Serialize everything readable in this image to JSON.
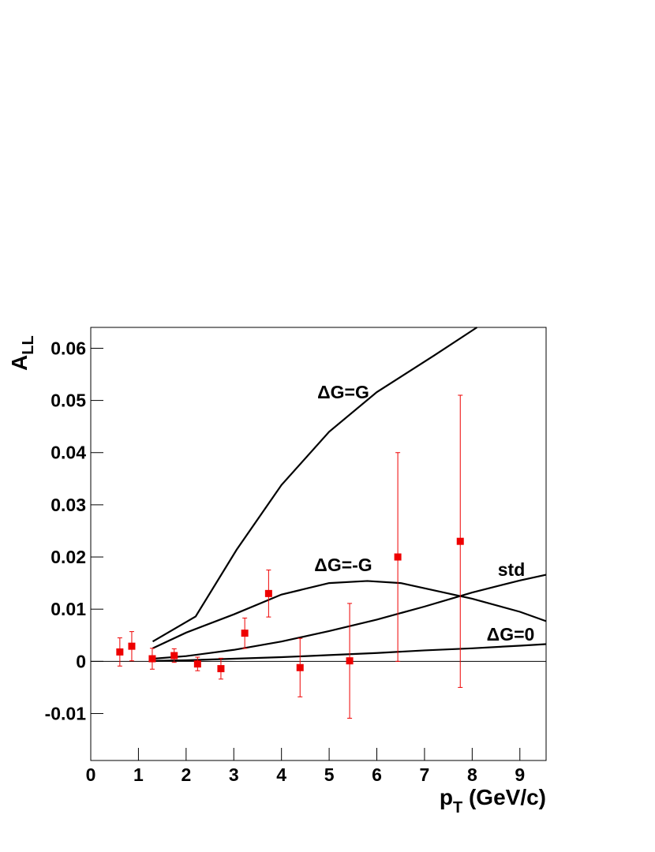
{
  "chart_data": {
    "type": "scatter",
    "x_label": {
      "main": "p",
      "sub": "T",
      "rest": " (GeV/c)"
    },
    "y_label": {
      "main": "A",
      "sub": "LL"
    },
    "xlim": [
      0,
      9.55
    ],
    "ylim": [
      -0.019,
      0.064
    ],
    "xticks": [
      0,
      1,
      2,
      3,
      4,
      5,
      6,
      7,
      8,
      9
    ],
    "yticks": [
      -0.01,
      0,
      0.01,
      0.02,
      0.03,
      0.04,
      0.05,
      0.06
    ],
    "points": {
      "color": "#ee0000",
      "x": [
        0.61,
        0.86,
        1.29,
        1.75,
        2.24,
        2.73,
        3.23,
        3.73,
        4.39,
        5.43,
        6.44,
        7.75
      ],
      "values": [
        0.0018,
        0.0029,
        0.0005,
        0.0011,
        -0.0005,
        -0.0014,
        0.0054,
        0.013,
        -0.0012,
        0.0001,
        0.02,
        0.023
      ],
      "errors": [
        0.0027,
        0.0028,
        0.002,
        0.0013,
        0.0013,
        0.002,
        0.0029,
        0.0045,
        0.0056,
        0.011,
        0.02,
        0.028
      ]
    },
    "series": [
      {
        "name": "ΔG=G",
        "color": "#000000",
        "x": [
          1.3,
          2.2,
          3.06,
          4,
          5,
          6,
          7.2,
          8.1
        ],
        "values": [
          0.0038,
          0.0086,
          0.0214,
          0.0338,
          0.044,
          0.0516,
          0.0586,
          0.064
        ]
      },
      {
        "name": "ΔG=-G",
        "color": "#000000",
        "x": [
          1.3,
          2,
          3,
          4,
          5,
          5.8,
          6.5,
          7,
          8,
          9,
          9.55
        ],
        "values": [
          0.0025,
          0.0055,
          0.009,
          0.0128,
          0.015,
          0.0154,
          0.015,
          0.014,
          0.012,
          0.0095,
          0.0077
        ]
      },
      {
        "name": "std",
        "color": "#000000",
        "x": [
          1.3,
          2,
          3,
          4,
          5,
          6,
          7,
          8,
          9,
          9.55
        ],
        "values": [
          0.0005,
          0.001,
          0.0022,
          0.0038,
          0.0058,
          0.008,
          0.0105,
          0.0132,
          0.0155,
          0.0166
        ]
      },
      {
        "name": "ΔG=0",
        "color": "#000000",
        "x": [
          1.3,
          2,
          3,
          4,
          5,
          6,
          7,
          8,
          9,
          9.55
        ],
        "values": [
          0.0001,
          0.0002,
          0.0005,
          0.0008,
          0.0012,
          0.0016,
          0.0021,
          0.0025,
          0.003,
          0.0033
        ]
      }
    ]
  }
}
